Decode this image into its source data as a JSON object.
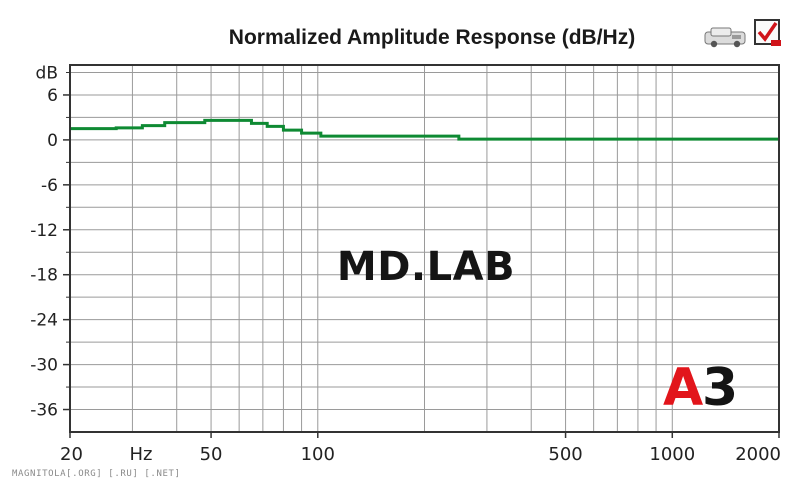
{
  "chart_data": {
    "type": "line",
    "title": "Normalized Amplitude Response (dB/Hz)",
    "xlabel": "Hz",
    "ylabel": "dB",
    "x_scale": "log",
    "xlim": [
      20,
      2000
    ],
    "ylim": [
      -39,
      10
    ],
    "x_ticks": [
      20,
      50,
      100,
      500,
      1000,
      2000
    ],
    "y_ticks": [
      6,
      0,
      -6,
      -12,
      -18,
      -24,
      -30,
      -36
    ],
    "grid": true,
    "series": [
      {
        "color": "#0e8a33",
        "style": "step",
        "x": [
          20,
          27,
          32,
          37,
          48,
          65,
          72,
          80,
          90,
          102,
          250,
          2000
        ],
        "y": [
          1.5,
          1.6,
          1.9,
          2.3,
          2.6,
          2.2,
          1.8,
          1.3,
          0.9,
          0.5,
          0.1,
          0.1
        ]
      }
    ]
  },
  "watermark": "MD.LAB",
  "badge": {
    "letter": "A",
    "digit": "3",
    "letter_color": "#e2151b",
    "digit_color": "#141414"
  },
  "site_credit": "MAGNITOLA[.ORG] [.RU] [.NET]",
  "icons": [
    "car-audio-icon",
    "checkbox-logo-icon"
  ],
  "colors": {
    "grid": "#9a9a9a",
    "axis": "#333333",
    "background": "#ffffff",
    "line": "#0e8a33"
  }
}
